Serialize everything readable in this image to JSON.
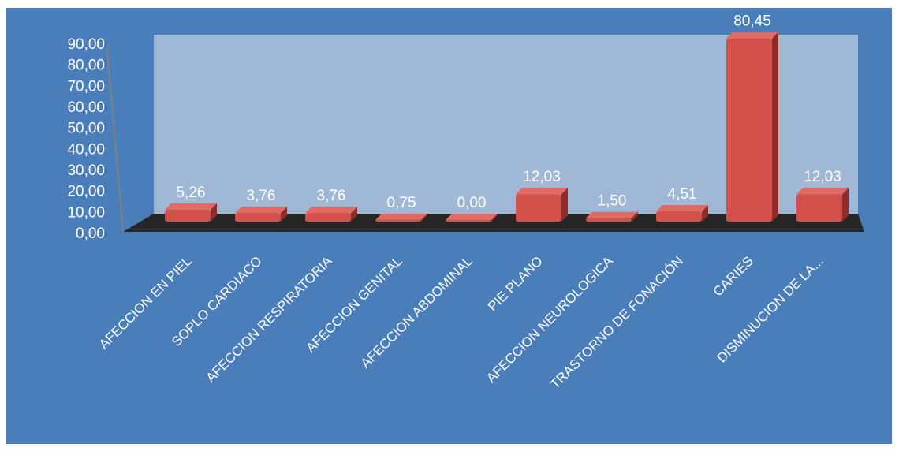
{
  "chart_data": {
    "type": "bar",
    "title": "",
    "xlabel": "",
    "ylabel": "",
    "ylim": [
      0,
      90
    ],
    "y_ticks": [
      "0,00",
      "10,00",
      "20,00",
      "30,00",
      "40,00",
      "50,00",
      "60,00",
      "70,00",
      "80,00",
      "90,00"
    ],
    "categories": [
      "AFECCION EN PIEL",
      "SOPLO CARDIACO",
      "AFECCION RESPIRATORIA",
      "AFECCION GENITAL",
      "AFECCION ABDOMINAL",
      "PIE PLANO",
      "AFECCION NEUROLOGICA",
      "TRASTORNO DE FONACIÓN",
      "CARIES",
      "DISMINUCION DE LA..."
    ],
    "values": [
      5.26,
      3.76,
      3.76,
      0.75,
      0.0,
      12.03,
      1.5,
      4.51,
      80.45,
      12.03
    ],
    "value_labels": [
      "5,26",
      "3,76",
      "3,76",
      "0,75",
      "0,00",
      "12,03",
      "1,50",
      "4,51",
      "80,45",
      "12,03"
    ],
    "grid": false,
    "legend": "none",
    "colors": {
      "background": "#4a7ebb",
      "back_wall": "#9fb8d5",
      "floor": "#262626",
      "bar": "#d3504b",
      "bar_top": "#e06a64",
      "text": "#ffffff"
    }
  }
}
